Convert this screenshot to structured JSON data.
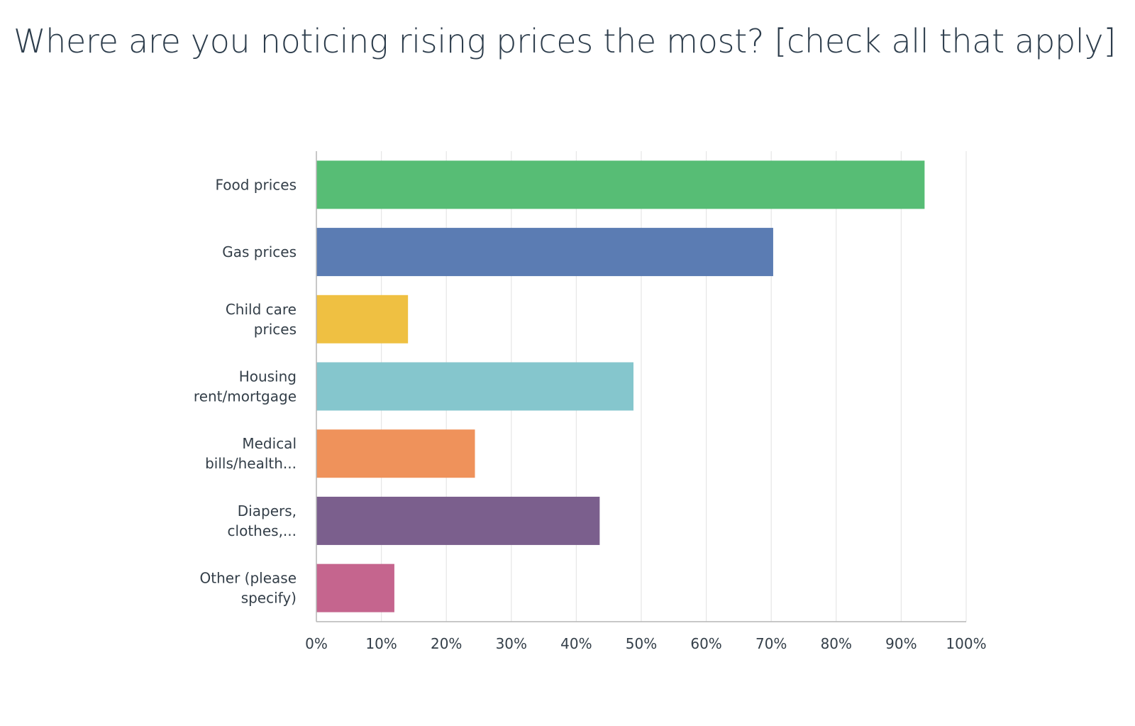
{
  "title": "Where are you noticing rising prices the most? [check all that apply]",
  "chart_data": {
    "type": "bar",
    "orientation": "horizontal",
    "title": "Where are you noticing rising prices the most? [check all that apply]",
    "xlabel": "",
    "ylabel": "",
    "xlim": [
      0,
      100
    ],
    "grid": true,
    "categories": [
      [
        "Food prices"
      ],
      [
        "Gas prices"
      ],
      [
        "Child care",
        "prices"
      ],
      [
        "Housing",
        "rent/mortgage"
      ],
      [
        "Medical",
        "bills/health..."
      ],
      [
        "Diapers,",
        "clothes,..."
      ],
      [
        "Other (please",
        "specify)"
      ]
    ],
    "values": [
      93.6,
      70.3,
      14.1,
      48.8,
      24.4,
      43.6,
      12.0
    ],
    "colors": [
      "#57bd75",
      "#5b7cb3",
      "#efc042",
      "#85c6cd",
      "#ef925b",
      "#7b5f8d",
      "#c5658e"
    ],
    "ticks": [
      "0%",
      "10%",
      "20%",
      "30%",
      "40%",
      "50%",
      "60%",
      "70%",
      "80%",
      "90%",
      "100%"
    ]
  }
}
